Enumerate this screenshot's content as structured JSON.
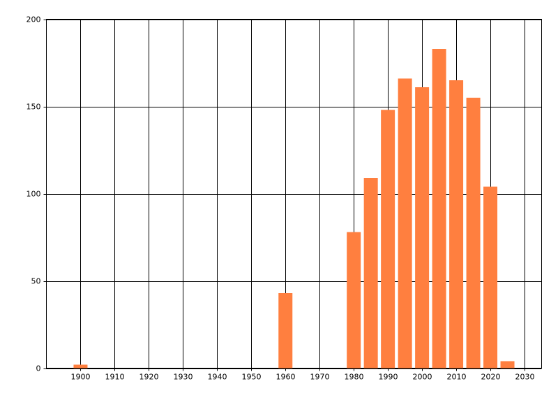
{
  "chart_data": {
    "type": "bar",
    "x": [
      1900,
      1960,
      1980,
      1985,
      1990,
      1995,
      2000,
      2005,
      2010,
      2015,
      2020,
      2025
    ],
    "values": [
      2,
      43,
      78,
      109,
      148,
      166,
      161,
      183,
      165,
      155,
      104,
      4
    ],
    "color": "#ff7f3f",
    "xlim": [
      1890,
      2035
    ],
    "xticks": [
      1900,
      1910,
      1920,
      1930,
      1940,
      1950,
      1960,
      1970,
      1980,
      1990,
      2000,
      2010,
      2020,
      2030
    ],
    "ylim": [
      0,
      200
    ],
    "yticks": [
      0,
      50,
      100,
      150,
      200
    ],
    "grid": true
  }
}
